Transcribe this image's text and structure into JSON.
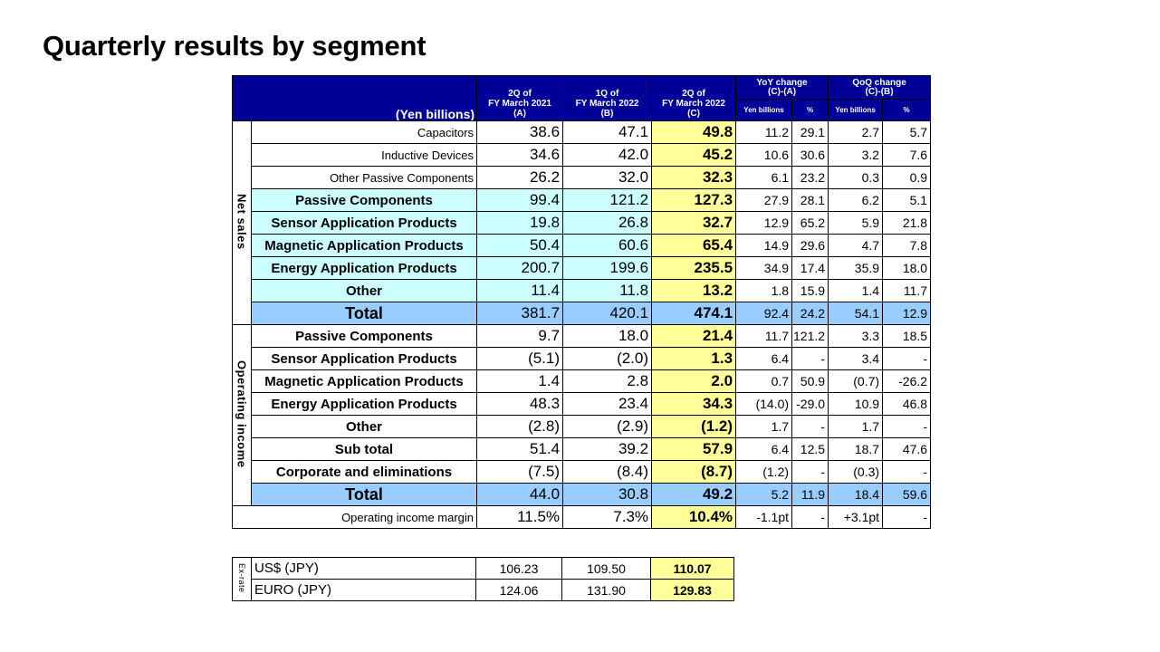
{
  "title": "Quarterly results by segment",
  "header": {
    "unit": "(Yen billions)",
    "col_a": "2Q of\nFY March 2021\n(A)",
    "col_b": "1Q of\nFY March 2022\n(B)",
    "col_c": "2Q of\nFY March 2022\n(C)",
    "yoy_title": "YoY change\n(C)-(A)",
    "qoq_title": "QoQ change\n(C)-(B)",
    "yen_billions": "Yen billions",
    "pct": "%"
  },
  "net_sales": {
    "section_label": "Net sales",
    "rows": [
      {
        "label": "Capacitors",
        "a": "38.6",
        "b": "47.1",
        "c": "49.8",
        "yoy_yen": "11.2",
        "yoy_pct": "29.1",
        "qoq_yen": "2.7",
        "qoq_pct": "5.7"
      },
      {
        "label": "Inductive Devices",
        "a": "34.6",
        "b": "42.0",
        "c": "45.2",
        "yoy_yen": "10.6",
        "yoy_pct": "30.6",
        "qoq_yen": "3.2",
        "qoq_pct": "7.6"
      },
      {
        "label": "Other Passive Components",
        "a": "26.2",
        "b": "32.0",
        "c": "32.3",
        "yoy_yen": "6.1",
        "yoy_pct": "23.2",
        "qoq_yen": "0.3",
        "qoq_pct": "0.9"
      },
      {
        "label": "Passive Components",
        "a": "99.4",
        "b": "121.2",
        "c": "127.3",
        "yoy_yen": "27.9",
        "yoy_pct": "28.1",
        "qoq_yen": "6.2",
        "qoq_pct": "5.1"
      },
      {
        "label": "Sensor Application Products",
        "a": "19.8",
        "b": "26.8",
        "c": "32.7",
        "yoy_yen": "12.9",
        "yoy_pct": "65.2",
        "qoq_yen": "5.9",
        "qoq_pct": "21.8"
      },
      {
        "label": "Magnetic Application Products",
        "a": "50.4",
        "b": "60.6",
        "c": "65.4",
        "yoy_yen": "14.9",
        "yoy_pct": "29.6",
        "qoq_yen": "4.7",
        "qoq_pct": "7.8"
      },
      {
        "label": "Energy Application Products",
        "a": "200.7",
        "b": "199.6",
        "c": "235.5",
        "yoy_yen": "34.9",
        "yoy_pct": "17.4",
        "qoq_yen": "35.9",
        "qoq_pct": "18.0"
      },
      {
        "label": "Other",
        "a": "11.4",
        "b": "11.8",
        "c": "13.2",
        "yoy_yen": "1.8",
        "yoy_pct": "15.9",
        "qoq_yen": "1.4",
        "qoq_pct": "11.7"
      },
      {
        "label": "Total",
        "a": "381.7",
        "b": "420.1",
        "c": "474.1",
        "yoy_yen": "92.4",
        "yoy_pct": "24.2",
        "qoq_yen": "54.1",
        "qoq_pct": "12.9"
      }
    ]
  },
  "operating_income": {
    "section_label": "Operating income",
    "rows": [
      {
        "label": "Passive Components",
        "a": "9.7",
        "b": "18.0",
        "c": "21.4",
        "yoy_yen": "11.7",
        "yoy_pct": "121.2",
        "qoq_yen": "3.3",
        "qoq_pct": "18.5"
      },
      {
        "label": "Sensor Application Products",
        "a": "(5.1)",
        "b": "(2.0)",
        "c": "1.3",
        "yoy_yen": "6.4",
        "yoy_pct": "-",
        "qoq_yen": "3.4",
        "qoq_pct": "-"
      },
      {
        "label": "Magnetic Application Products",
        "a": "1.4",
        "b": "2.8",
        "c": "2.0",
        "yoy_yen": "0.7",
        "yoy_pct": "50.9",
        "qoq_yen": "(0.7)",
        "qoq_pct": "-26.2"
      },
      {
        "label": "Energy Application Products",
        "a": "48.3",
        "b": "23.4",
        "c": "34.3",
        "yoy_yen": "(14.0)",
        "yoy_pct": "-29.0",
        "qoq_yen": "10.9",
        "qoq_pct": "46.8"
      },
      {
        "label": "Other",
        "a": "(2.8)",
        "b": "(2.9)",
        "c": "(1.2)",
        "yoy_yen": "1.7",
        "yoy_pct": "-",
        "qoq_yen": "1.7",
        "qoq_pct": "-"
      },
      {
        "label": "Sub total",
        "a": "51.4",
        "b": "39.2",
        "c": "57.9",
        "yoy_yen": "6.4",
        "yoy_pct": "12.5",
        "qoq_yen": "18.7",
        "qoq_pct": "47.6"
      },
      {
        "label": "Corporate and eliminations",
        "a": "(7.5)",
        "b": "(8.4)",
        "c": "(8.7)",
        "yoy_yen": "(1.2)",
        "yoy_pct": "-",
        "qoq_yen": "(0.3)",
        "qoq_pct": "-"
      },
      {
        "label": "Total",
        "a": "44.0",
        "b": "30.8",
        "c": "49.2",
        "yoy_yen": "5.2",
        "yoy_pct": "11.9",
        "qoq_yen": "18.4",
        "qoq_pct": "59.6"
      }
    ]
  },
  "margin": {
    "label": "Operating income margin",
    "a": "11.5%",
    "b": "7.3%",
    "c": "10.4%",
    "yoy_yen": "-1.1pt",
    "yoy_pct": "-",
    "qoq_yen": "+3.1pt",
    "qoq_pct": "-"
  },
  "ex_rate": {
    "section_label": "Ex-rate",
    "rows": [
      {
        "label": "US$ (JPY)",
        "a": "106.23",
        "b": "109.50",
        "c": "110.07"
      },
      {
        "label": "EURO (JPY)",
        "a": "124.06",
        "b": "131.90",
        "c": "129.83"
      }
    ]
  },
  "colors": {
    "header_bg": "#000099",
    "segment_bg": "#ccffff",
    "total_bg": "#99ccff",
    "current_bg": "#ffff99"
  }
}
